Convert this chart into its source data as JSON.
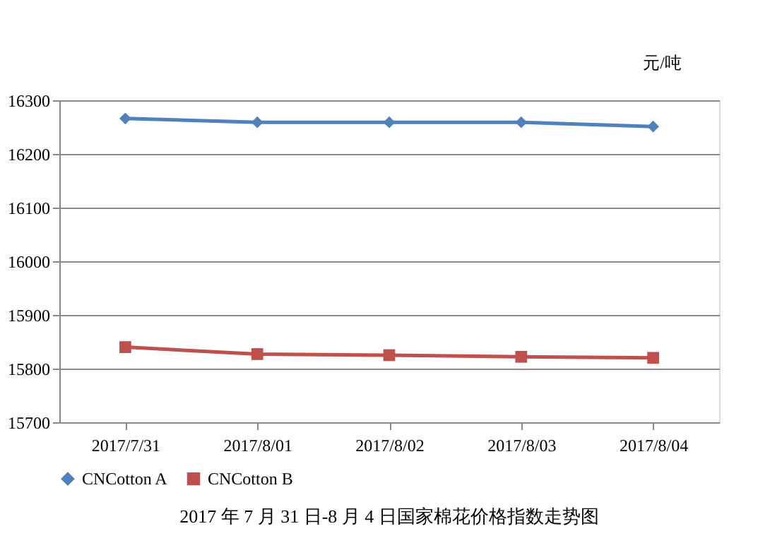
{
  "chart_data": {
    "type": "line",
    "title": "2017 年 7 月 31 日-8 月 4 日国家棉花价格指数走势图",
    "ylabel": "元/吨",
    "categories": [
      "2017/7/31",
      "2017/8/01",
      "2017/8/02",
      "2017/8/03",
      "2017/8/04"
    ],
    "series": [
      {
        "name": "CNCotton A",
        "color": "#4f81bd",
        "marker": "diamond",
        "values": [
          16266,
          16259,
          16259,
          16259,
          16251
        ]
      },
      {
        "name": "CNCotton B",
        "color": "#c0504d",
        "marker": "square",
        "values": [
          15840,
          15827,
          15825,
          15822,
          15820
        ]
      }
    ],
    "ylim": [
      15700,
      16300
    ],
    "yticks": [
      15700,
      15800,
      15900,
      16000,
      16100,
      16200,
      16300
    ],
    "grid": "y",
    "legend": "bottom",
    "line_style": "solid"
  }
}
